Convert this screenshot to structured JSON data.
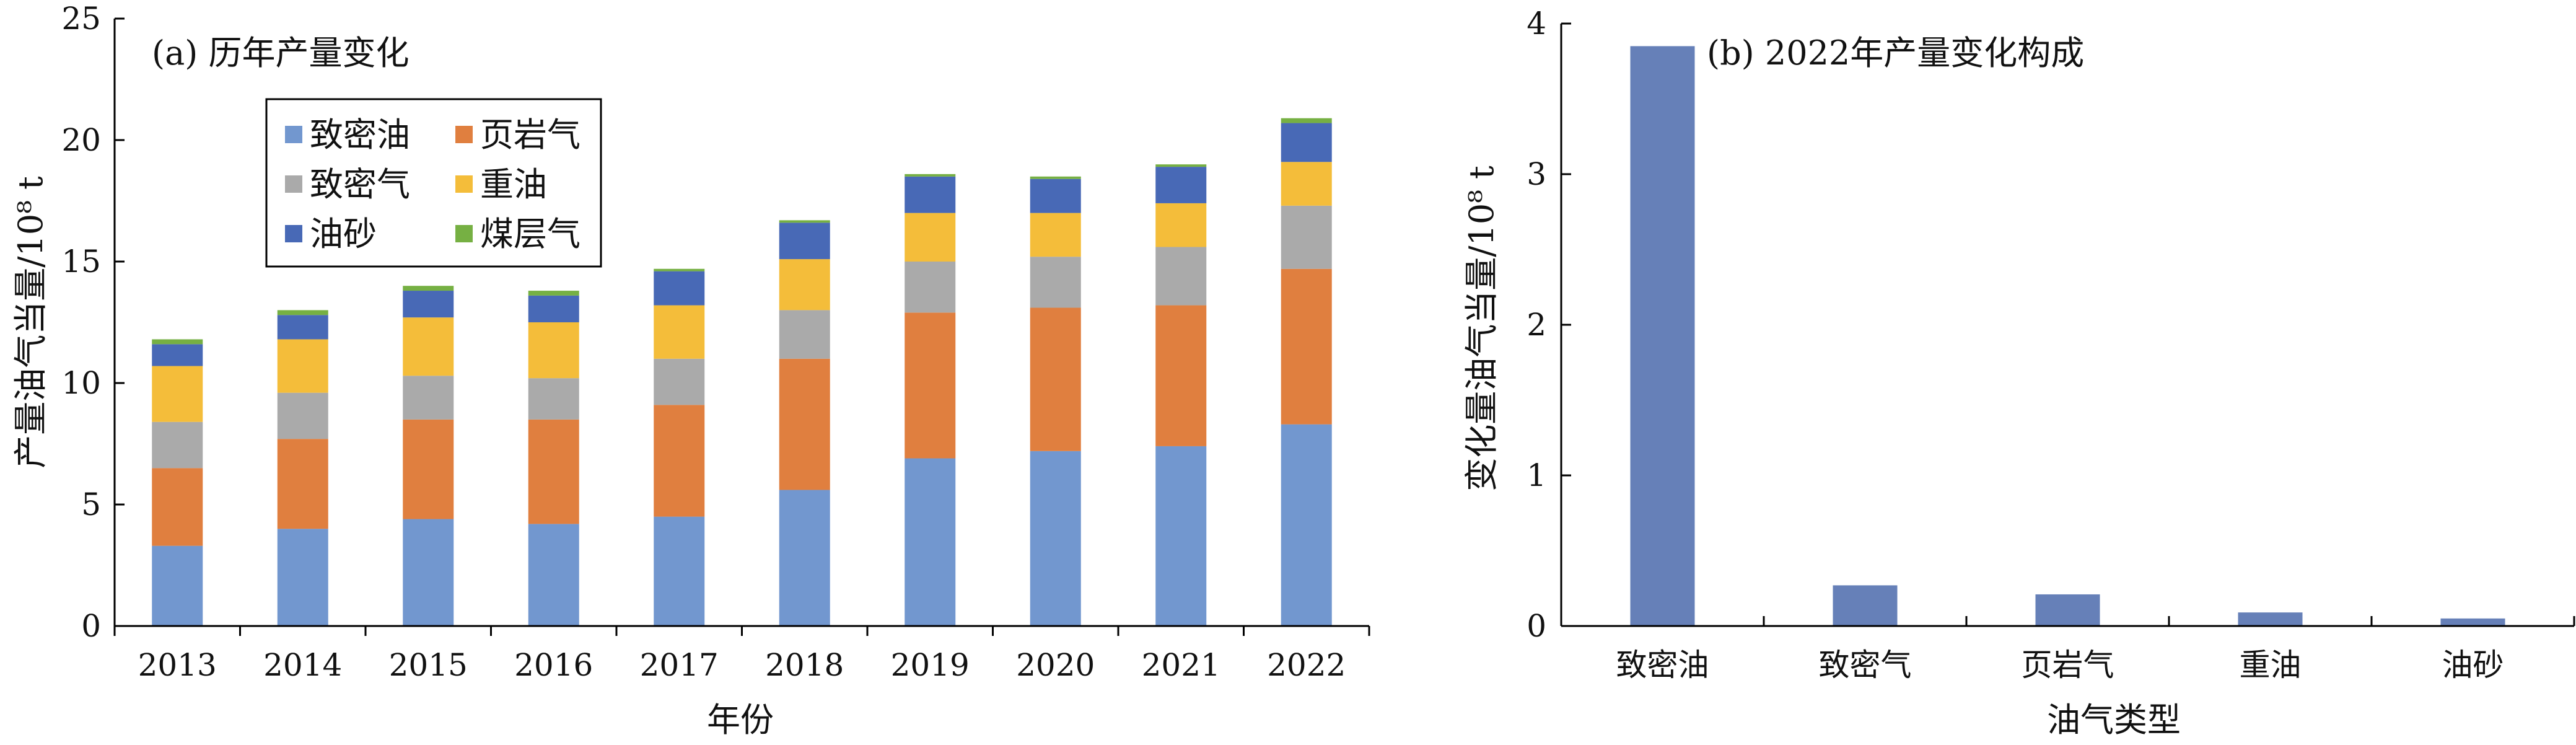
{
  "chart_data": [
    {
      "type": "bar",
      "stacked": true,
      "title": "(a) 历年产量变化",
      "xlabel": "年份",
      "ylabel": "产量油气当量/10⁸ t",
      "ylim": [
        0,
        25
      ],
      "yticks": [
        "0",
        "5",
        "10",
        "15",
        "20",
        "25"
      ],
      "grid": false,
      "legend_position": "top-left",
      "categories": [
        "2013",
        "2014",
        "2015",
        "2016",
        "2017",
        "2018",
        "2019",
        "2020",
        "2021",
        "2022"
      ],
      "series": [
        {
          "name": "致密油",
          "color": "#7297cf",
          "values": [
            3.3,
            4.0,
            4.4,
            4.2,
            4.5,
            5.6,
            6.9,
            7.2,
            7.4,
            8.3
          ]
        },
        {
          "name": "页岩气",
          "color": "#e07f3f",
          "values": [
            3.2,
            3.7,
            4.1,
            4.3,
            4.6,
            5.4,
            6.0,
            5.9,
            5.8,
            6.4
          ]
        },
        {
          "name": "致密气",
          "color": "#aaaaaa",
          "values": [
            1.9,
            1.9,
            1.8,
            1.7,
            1.9,
            2.0,
            2.1,
            2.1,
            2.4,
            2.6
          ]
        },
        {
          "name": "重油",
          "color": "#f4bd3a",
          "values": [
            2.3,
            2.2,
            2.4,
            2.3,
            2.2,
            2.1,
            2.0,
            1.8,
            1.8,
            1.8
          ]
        },
        {
          "name": "油砂",
          "color": "#4869b6",
          "values": [
            0.9,
            1.0,
            1.1,
            1.1,
            1.4,
            1.5,
            1.5,
            1.4,
            1.5,
            1.6
          ]
        },
        {
          "name": "煤层气",
          "color": "#76b043",
          "values": [
            0.2,
            0.2,
            0.2,
            0.2,
            0.1,
            0.1,
            0.1,
            0.1,
            0.1,
            0.2
          ]
        }
      ]
    },
    {
      "type": "bar",
      "title": "(b) 2022年产量变化构成",
      "xlabel": "油气类型",
      "ylabel": "变化量油气当量/10⁸ t",
      "ylim": [
        0,
        4
      ],
      "yticks": [
        "0",
        "1",
        "2",
        "3",
        "4"
      ],
      "grid": false,
      "categories": [
        "致密油",
        "致密气",
        "页岩气",
        "重油",
        "油砂"
      ],
      "color": "#6680b8",
      "values": [
        3.85,
        0.27,
        0.21,
        0.09,
        0.05
      ]
    }
  ]
}
